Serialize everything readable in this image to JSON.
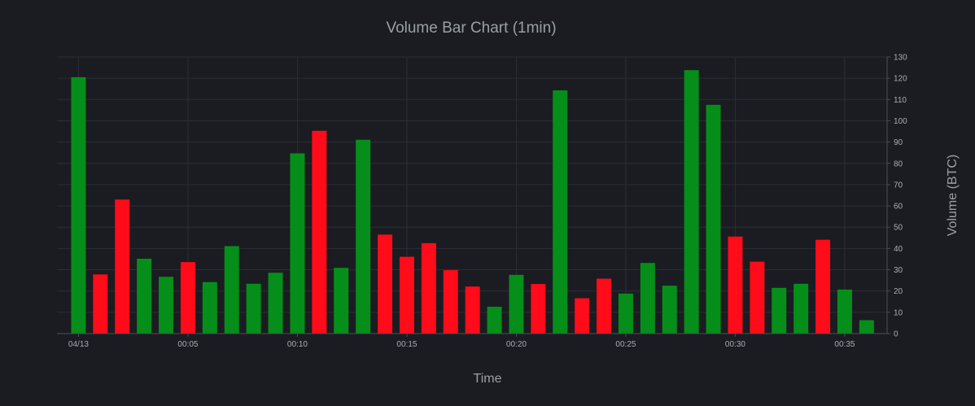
{
  "chart_data": {
    "type": "bar",
    "title": "Volume Bar Chart (1min)",
    "xlabel": "Time",
    "ylabel": "Volume (BTC)",
    "y_axis_side": "right",
    "grid": true,
    "ylim": [
      0,
      130
    ],
    "y_ticks": [
      0,
      10,
      20,
      30,
      40,
      50,
      60,
      70,
      80,
      90,
      100,
      110,
      120,
      130
    ],
    "x_tick_labels": [
      {
        "index": 0,
        "label": "04/13"
      },
      {
        "index": 5,
        "label": "00:05"
      },
      {
        "index": 10,
        "label": "00:10"
      },
      {
        "index": 15,
        "label": "00:15"
      },
      {
        "index": 20,
        "label": "00:20"
      },
      {
        "index": 25,
        "label": "00:25"
      },
      {
        "index": 30,
        "label": "00:30"
      },
      {
        "index": 35,
        "label": "00:35"
      }
    ],
    "categories": [
      "00:00",
      "00:01",
      "00:02",
      "00:03",
      "00:04",
      "00:05",
      "00:06",
      "00:07",
      "00:08",
      "00:09",
      "00:10",
      "00:11",
      "00:12",
      "00:13",
      "00:14",
      "00:15",
      "00:16",
      "00:17",
      "00:18",
      "00:19",
      "00:20",
      "00:21",
      "00:22",
      "00:23",
      "00:24",
      "00:25",
      "00:26",
      "00:27",
      "00:28",
      "00:29",
      "00:30",
      "00:31",
      "00:32",
      "00:33",
      "00:34",
      "00:35",
      "00:36"
    ],
    "values": [
      120.5,
      27.8,
      63.0,
      35.2,
      26.7,
      33.6,
      24.2,
      41.1,
      23.4,
      28.6,
      84.7,
      95.3,
      30.9,
      91.1,
      46.5,
      36.1,
      42.5,
      29.8,
      22.1,
      12.6,
      27.6,
      23.3,
      114.3,
      16.6,
      25.8,
      18.8,
      33.2,
      22.5,
      123.8,
      107.5,
      45.6,
      33.8,
      21.5,
      23.4,
      44.1,
      20.7,
      6.3
    ],
    "directions": [
      "up",
      "down",
      "down",
      "up",
      "up",
      "down",
      "up",
      "up",
      "up",
      "up",
      "up",
      "down",
      "up",
      "up",
      "down",
      "down",
      "down",
      "down",
      "down",
      "up",
      "up",
      "down",
      "up",
      "down",
      "down",
      "up",
      "up",
      "up",
      "up",
      "up",
      "down",
      "down",
      "up",
      "up",
      "down",
      "up",
      "up"
    ],
    "colors": {
      "up": "#068e1a",
      "down": "#ff0b19"
    }
  }
}
